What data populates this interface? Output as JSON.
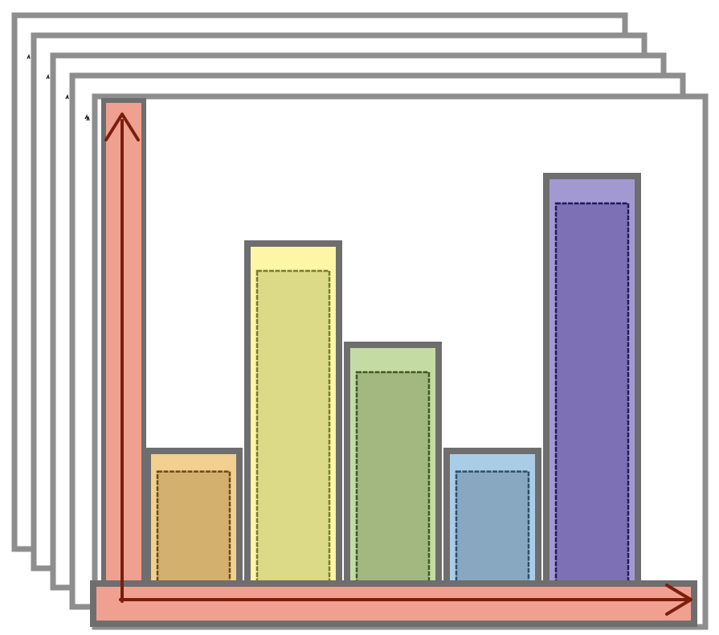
{
  "chart_data": {
    "type": "bar",
    "categories": [
      "",
      "",
      "",
      "",
      ""
    ],
    "values": [
      30,
      73,
      52,
      30,
      87
    ],
    "ylim": [
      0,
      100
    ],
    "grid": false,
    "legend": "none",
    "title": "",
    "xlabel": "",
    "ylabel": "",
    "stacked_pages": 5
  },
  "colors": {
    "page_border": "#8e8e8e",
    "bar_border": "#6e6e6e",
    "axis_highlight": "#f0a090",
    "axis_arrow": "#7a1e0e",
    "bars": [
      {
        "outer": "#f3cf90",
        "inner": "#d3b06d",
        "stroke": "#6b4a1a"
      },
      {
        "outer": "#fcf6a6",
        "inner": "#dcda86",
        "stroke": "#7a7a30"
      },
      {
        "outer": "#c5dba4",
        "inner": "#a2b880",
        "stroke": "#3e5a22"
      },
      {
        "outer": "#a9cde6",
        "inner": "#88a8c2",
        "stroke": "#2e4e6a"
      },
      {
        "outer": "#a399d2",
        "inner": "#7e70b4",
        "stroke": "#221a5e"
      }
    ]
  }
}
